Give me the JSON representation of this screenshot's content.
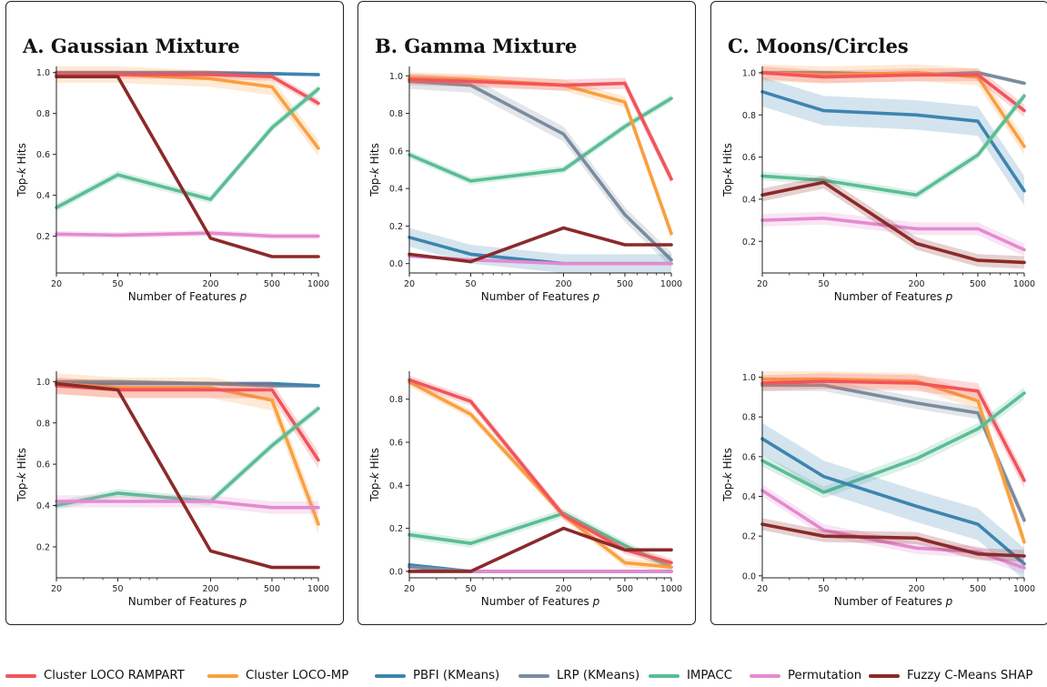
{
  "panels": [
    {
      "title": "A. Gaussian Mixture"
    },
    {
      "title": "B. Gamma Mixture"
    },
    {
      "title": "C. Moons/Circles"
    }
  ],
  "legend": [
    {
      "label": "Cluster LOCO RAMPART",
      "color": "#f2545b"
    },
    {
      "label": "Cluster LOCO-MP",
      "color": "#f9a03f"
    },
    {
      "label": "PBFI (KMeans)",
      "color": "#3d85b0"
    },
    {
      "label": "LRP (KMeans)",
      "color": "#7a8c9e"
    },
    {
      "label": "IMPACC",
      "color": "#5bbd95"
    },
    {
      "label": "Permutation",
      "color": "#e58ad0"
    },
    {
      "label": "Fuzzy C-Means SHAP",
      "color": "#8b2a2a"
    }
  ],
  "chart_data": [
    {
      "type": "line",
      "panel": "A. Gaussian Mixture",
      "xlabel": "Number of Features p",
      "ylabel": "Top-k Hits",
      "xscale": "log",
      "xlim": [
        20,
        1000
      ],
      "ylim": [
        0.02,
        1.03
      ],
      "xticks": [
        20,
        50,
        200,
        500,
        1000
      ],
      "yticks": [
        0.2,
        0.4,
        0.6,
        0.8,
        1.0
      ],
      "x": [
        20,
        50,
        200,
        500,
        1000
      ],
      "series": [
        {
          "name": "LRP (KMeans)",
          "values": [
            1.0,
            1.0,
            1.0,
            0.995,
            0.99
          ],
          "band": 0.005
        },
        {
          "name": "PBFI (KMeans)",
          "values": [
            0.995,
            0.995,
            0.995,
            0.995,
            0.99
          ],
          "band": 0.005
        },
        {
          "name": "Cluster LOCO-MP",
          "values": [
            0.99,
            0.99,
            0.97,
            0.93,
            0.63
          ],
          "band": 0.04
        },
        {
          "name": "Cluster LOCO RAMPART",
          "values": [
            0.99,
            0.99,
            0.99,
            0.98,
            0.85
          ],
          "band": 0.02
        },
        {
          "name": "IMPACC",
          "values": [
            0.34,
            0.5,
            0.38,
            0.73,
            0.92
          ],
          "band": 0.02
        },
        {
          "name": "Permutation",
          "values": [
            0.21,
            0.205,
            0.215,
            0.2,
            0.2
          ],
          "band": 0.015
        },
        {
          "name": "Fuzzy C-Means SHAP",
          "values": [
            0.98,
            0.98,
            0.19,
            0.1,
            0.1
          ],
          "band": 0.0
        }
      ]
    },
    {
      "type": "line",
      "panel": "B. Gamma Mixture",
      "xlabel": "Number of Features p",
      "ylabel": "Top-k Hits",
      "xscale": "log",
      "xlim": [
        20,
        1000
      ],
      "ylim": [
        -0.05,
        1.05
      ],
      "xticks": [
        20,
        50,
        200,
        500,
        1000
      ],
      "yticks": [
        0.0,
        0.2,
        0.4,
        0.6,
        0.8,
        1.0
      ],
      "x": [
        20,
        50,
        200,
        500,
        1000
      ],
      "series": [
        {
          "name": "IMPACC",
          "values": [
            0.58,
            0.44,
            0.5,
            0.73,
            0.88
          ],
          "band": 0.02
        },
        {
          "name": "LRP (KMeans)",
          "values": [
            0.97,
            0.95,
            0.69,
            0.26,
            0.02
          ],
          "band": 0.04
        },
        {
          "name": "Cluster LOCO-MP",
          "values": [
            0.99,
            0.98,
            0.95,
            0.86,
            0.16
          ],
          "band": 0.03
        },
        {
          "name": "Cluster LOCO RAMPART",
          "values": [
            0.98,
            0.97,
            0.95,
            0.96,
            0.45
          ],
          "band": 0.03
        },
        {
          "name": "PBFI (KMeans)",
          "values": [
            0.14,
            0.05,
            0.0,
            0.0,
            0.0
          ],
          "band": 0.05
        },
        {
          "name": "Permutation",
          "values": [
            0.04,
            0.02,
            0.0,
            0.0,
            0.0
          ],
          "band": 0.005
        },
        {
          "name": "Fuzzy C-Means SHAP",
          "values": [
            0.05,
            0.01,
            0.19,
            0.1,
            0.1
          ],
          "band": 0.0
        }
      ]
    },
    {
      "type": "line",
      "panel": "C. Moons/Circles",
      "xlabel": "Number of Features p",
      "ylabel": "Top-k Hits",
      "xscale": "log",
      "xlim": [
        20,
        1000
      ],
      "ylim": [
        0.05,
        1.03
      ],
      "xticks": [
        20,
        50,
        200,
        500,
        1000
      ],
      "yticks": [
        0.2,
        0.4,
        0.6,
        0.8,
        1.0
      ],
      "x": [
        20,
        50,
        200,
        500,
        1000
      ],
      "series": [
        {
          "name": "LRP (KMeans)",
          "values": [
            1.0,
            1.0,
            0.99,
            1.0,
            0.95
          ],
          "band": 0.01
        },
        {
          "name": "Cluster LOCO-MP",
          "values": [
            1.0,
            0.99,
            1.0,
            0.98,
            0.65
          ],
          "band": 0.04
        },
        {
          "name": "Cluster LOCO RAMPART",
          "values": [
            1.0,
            0.98,
            0.99,
            0.99,
            0.82
          ],
          "band": 0.03
        },
        {
          "name": "PBFI (KMeans)",
          "values": [
            0.91,
            0.82,
            0.8,
            0.77,
            0.44
          ],
          "band": 0.07
        },
        {
          "name": "IMPACC",
          "values": [
            0.51,
            0.49,
            0.42,
            0.61,
            0.89
          ],
          "band": 0.02
        },
        {
          "name": "Permutation",
          "values": [
            0.3,
            0.31,
            0.26,
            0.26,
            0.16
          ],
          "band": 0.03
        },
        {
          "name": "Fuzzy C-Means SHAP",
          "values": [
            0.42,
            0.48,
            0.19,
            0.11,
            0.1
          ],
          "band": 0.03
        }
      ]
    },
    {
      "type": "line",
      "panel": "A. Gaussian Mixture",
      "xlabel": "Number of Features p",
      "ylabel": "Top-k Hits",
      "xscale": "log",
      "xlim": [
        20,
        1000
      ],
      "ylim": [
        0.05,
        1.05
      ],
      "xticks": [
        20,
        50,
        200,
        500,
        1000
      ],
      "yticks": [
        0.2,
        0.4,
        0.6,
        0.8,
        1.0
      ],
      "x": [
        20,
        50,
        200,
        500,
        1000
      ],
      "series": [
        {
          "name": "LRP (KMeans)",
          "values": [
            1.0,
            1.0,
            0.99,
            0.98,
            0.98
          ],
          "band": 0.01
        },
        {
          "name": "PBFI (KMeans)",
          "values": [
            0.99,
            0.99,
            0.99,
            0.99,
            0.98
          ],
          "band": 0.005
        },
        {
          "name": "Cluster LOCO-MP",
          "values": [
            0.99,
            0.97,
            0.97,
            0.91,
            0.31
          ],
          "band": 0.05
        },
        {
          "name": "Cluster LOCO RAMPART",
          "values": [
            0.98,
            0.96,
            0.96,
            0.96,
            0.62
          ],
          "band": 0.04
        },
        {
          "name": "IMPACC",
          "values": [
            0.4,
            0.46,
            0.42,
            0.69,
            0.87
          ],
          "band": 0.02
        },
        {
          "name": "Permutation",
          "values": [
            0.42,
            0.42,
            0.42,
            0.39,
            0.39
          ],
          "band": 0.03
        },
        {
          "name": "Fuzzy C-Means SHAP",
          "values": [
            0.99,
            0.96,
            0.18,
            0.1,
            0.1
          ],
          "band": 0.0
        }
      ]
    },
    {
      "type": "line",
      "panel": "B. Gamma Mixture",
      "xlabel": "Number of Features p",
      "ylabel": "Top-k Hits",
      "xscale": "log",
      "xlim": [
        20,
        1000
      ],
      "ylim": [
        -0.03,
        0.93
      ],
      "xticks": [
        20,
        50,
        200,
        500,
        1000
      ],
      "yticks": [
        0.0,
        0.2,
        0.4,
        0.6,
        0.8
      ],
      "x": [
        20,
        50,
        200,
        500,
        1000
      ],
      "series": [
        {
          "name": "IMPACC",
          "values": [
            0.17,
            0.13,
            0.27,
            0.12,
            0.02
          ],
          "band": 0.02
        },
        {
          "name": "Cluster LOCO-MP",
          "values": [
            0.88,
            0.73,
            0.26,
            0.04,
            0.02
          ],
          "band": 0.02
        },
        {
          "name": "Cluster LOCO RAMPART",
          "values": [
            0.89,
            0.79,
            0.26,
            0.1,
            0.04
          ],
          "band": 0.02
        },
        {
          "name": "PBFI (KMeans)",
          "values": [
            0.03,
            0.0,
            0.0,
            0.0,
            0.0
          ],
          "band": 0.005
        },
        {
          "name": "LRP (KMeans)",
          "values": [
            0.02,
            0.0,
            0.0,
            0.0,
            0.0
          ],
          "band": 0.005
        },
        {
          "name": "Permutation",
          "values": [
            0.0,
            0.0,
            0.0,
            0.0,
            0.0
          ],
          "band": 0.0
        },
        {
          "name": "Fuzzy C-Means SHAP",
          "values": [
            0.0,
            0.0,
            0.2,
            0.1,
            0.1
          ],
          "band": 0.0
        }
      ]
    },
    {
      "type": "line",
      "panel": "C. Moons/Circles",
      "xlabel": "Number of Features p",
      "ylabel": "Top-k Hits",
      "xscale": "log",
      "xlim": [
        20,
        1000
      ],
      "ylim": [
        -0.01,
        1.03
      ],
      "xticks": [
        20,
        50,
        200,
        500,
        1000
      ],
      "yticks": [
        0.0,
        0.2,
        0.4,
        0.6,
        0.8,
        1.0
      ],
      "x": [
        20,
        50,
        200,
        500,
        1000
      ],
      "series": [
        {
          "name": "LRP (KMeans)",
          "values": [
            0.96,
            0.96,
            0.87,
            0.82,
            0.28
          ],
          "band": 0.03
        },
        {
          "name": "Cluster LOCO-MP",
          "values": [
            0.99,
            0.99,
            0.98,
            0.88,
            0.17
          ],
          "band": 0.04
        },
        {
          "name": "Cluster LOCO RAMPART",
          "values": [
            0.97,
            0.98,
            0.97,
            0.93,
            0.48
          ],
          "band": 0.04
        },
        {
          "name": "IMPACC",
          "values": [
            0.58,
            0.42,
            0.59,
            0.74,
            0.92
          ],
          "band": 0.03
        },
        {
          "name": "PBFI (KMeans)",
          "values": [
            0.69,
            0.5,
            0.35,
            0.26,
            0.06
          ],
          "band": 0.08
        },
        {
          "name": "Permutation",
          "values": [
            0.43,
            0.23,
            0.14,
            0.12,
            0.04
          ],
          "band": 0.03
        },
        {
          "name": "Fuzzy C-Means SHAP",
          "values": [
            0.26,
            0.2,
            0.19,
            0.11,
            0.1
          ],
          "band": 0.03
        }
      ]
    }
  ]
}
